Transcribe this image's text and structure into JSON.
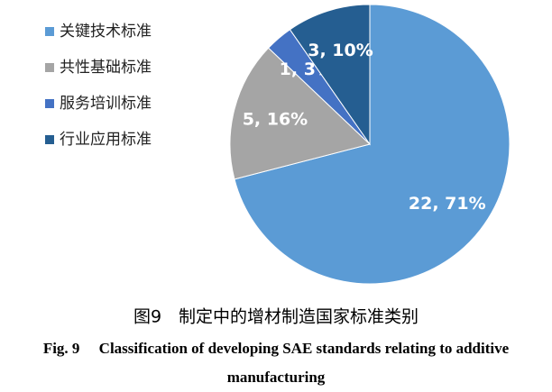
{
  "chart_data": {
    "type": "pie",
    "categories": [
      "关键技术标准",
      "共性基础标准",
      "服务培训标准",
      "行业应用标准"
    ],
    "values": [
      22,
      5,
      1,
      3
    ],
    "value_labels": [
      "22, 71%",
      "5, 16%",
      "1, 3%",
      "3, 10%"
    ],
    "colors": [
      "#5b9bd5",
      "#a5a5a5",
      "#4472c4",
      "#255e91"
    ],
    "legend": "left",
    "caption_zh": "图9　制定中的增材制造国家标准类别",
    "caption_en": [
      "Fig. 9　 Classification of developing SAE standards relating to additive",
      "manufacturing"
    ]
  }
}
